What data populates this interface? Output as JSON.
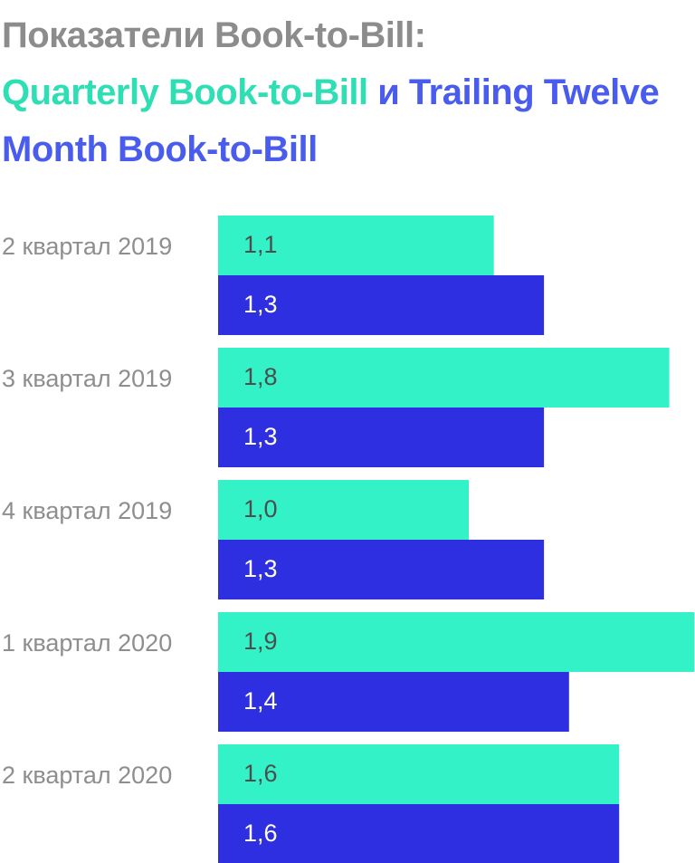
{
  "title": {
    "line1": "Показатели Book-to-Bill:",
    "quarterly": "Quarterly Book-to-Bill",
    "conjunction": " и ",
    "trailing": "Trailing Twelve Month Book-to-Bill"
  },
  "chart_data": {
    "type": "bar",
    "orientation": "horizontal",
    "categories": [
      "2 квартал 2019",
      "3 квартал 2019",
      "4 квартал 2019",
      "1 квартал 2020",
      "2 квартал 2020"
    ],
    "series": [
      {
        "name": "Quarterly Book-to-Bill",
        "color": "#33f2c8",
        "label_color": "#4d4d4d",
        "values": [
          1.1,
          1.8,
          1.0,
          1.9,
          1.6
        ],
        "labels": [
          "1,1",
          "1,8",
          "1,0",
          "1,9",
          "1,6"
        ]
      },
      {
        "name": "Trailing Twelve Month Book-to-Bill",
        "color": "#2e2fe0",
        "label_color": "#ffffff",
        "values": [
          1.3,
          1.3,
          1.3,
          1.4,
          1.6
        ],
        "labels": [
          "1,3",
          "1,3",
          "1,3",
          "1,4",
          "1,6"
        ]
      }
    ],
    "legend": "in-title",
    "grid": false
  },
  "colors": {
    "title_gray": "#8c8c8c",
    "title_green": "#2fdfb4",
    "title_blue": "#4a5ced",
    "category_label": "#8e8e8e"
  }
}
